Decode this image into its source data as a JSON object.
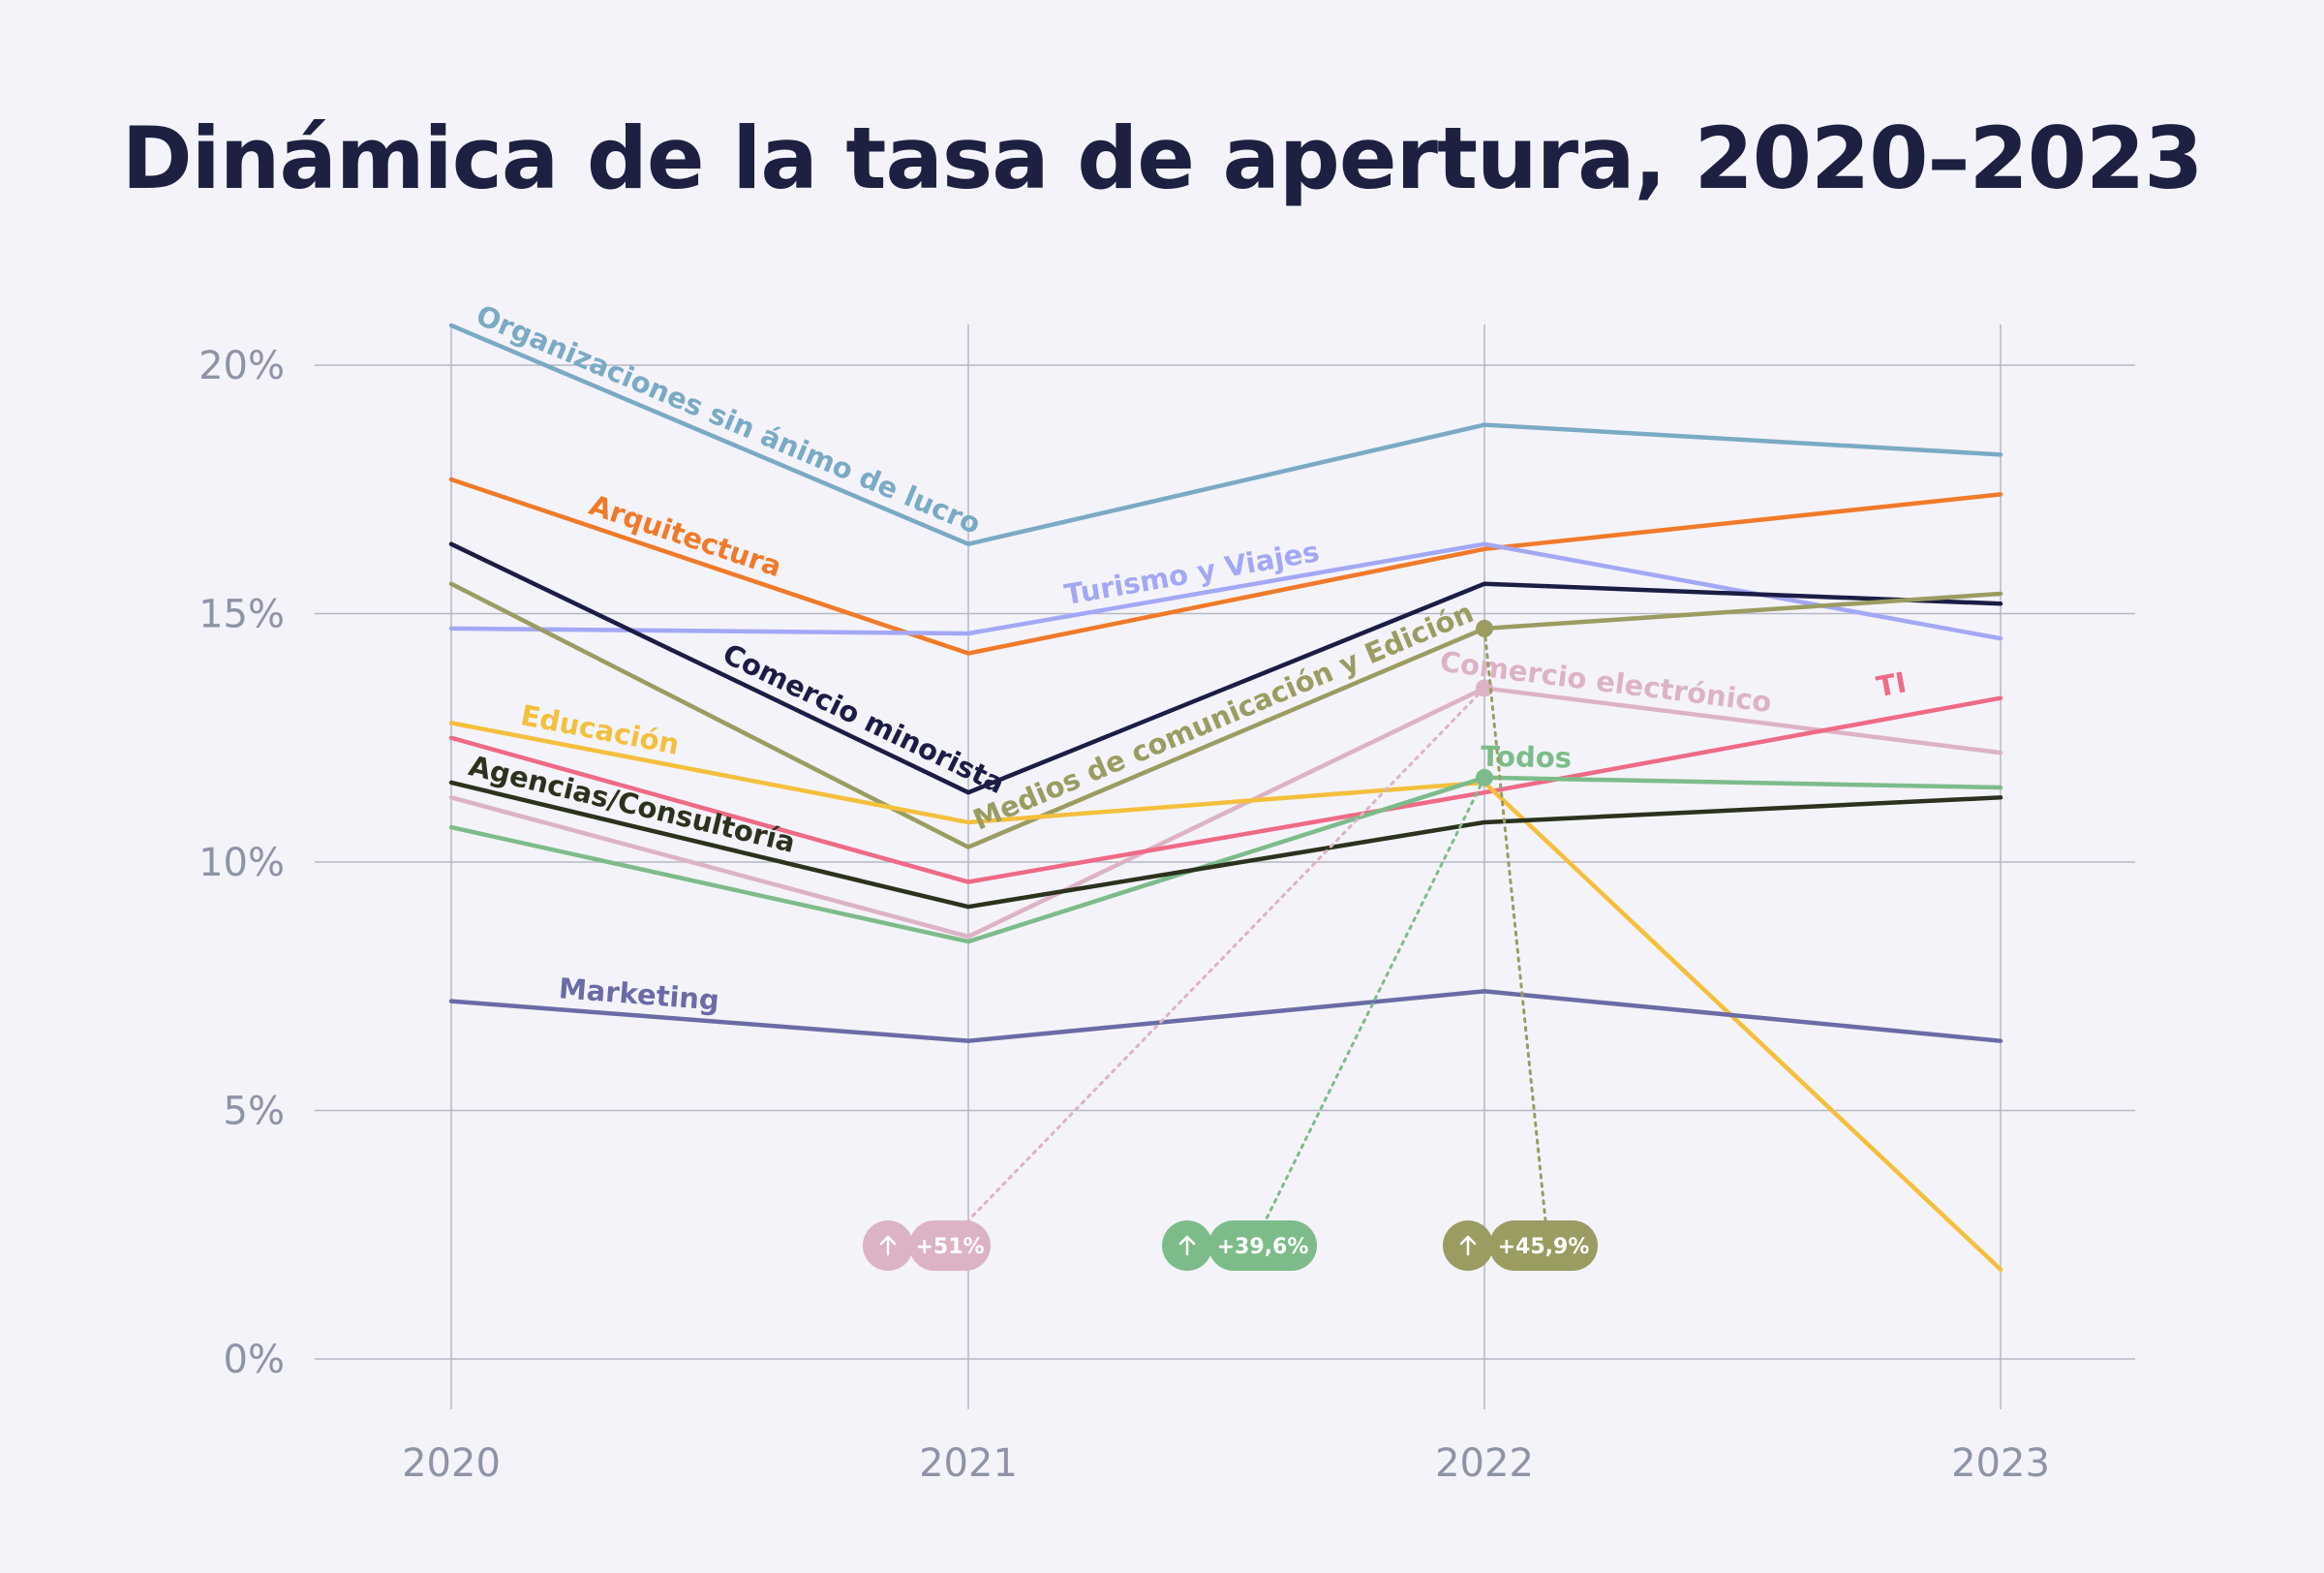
{
  "chart_data": {
    "type": "line",
    "title": "Dinámica de la tasa de apertura, 2020–2023",
    "x": [
      "2020",
      "2021",
      "2022",
      "2023"
    ],
    "y_ticks": [
      "0%",
      "5%",
      "10%",
      "15%",
      "20%"
    ],
    "ylim": [
      0,
      20
    ],
    "grid": true,
    "series": [
      {
        "name": "Organizaciones sin ánimo de lucro",
        "color": "#7aaac4",
        "values": [
          20.8,
          16.4,
          18.8,
          18.2
        ]
      },
      {
        "name": "Arquitectura",
        "color": "#f07a2a",
        "values": [
          17.7,
          14.2,
          16.3,
          17.4
        ]
      },
      {
        "name": "Turismo y Viajes",
        "color": "#a3a8f5",
        "values": [
          14.7,
          14.6,
          16.4,
          14.5
        ]
      },
      {
        "name": "Comercio minorista",
        "color": "#1c1d45",
        "values": [
          16.4,
          11.4,
          15.6,
          15.2
        ]
      },
      {
        "name": "Medios de comunicación y Edición",
        "color": "#9a9c62",
        "values": [
          15.6,
          10.3,
          14.7,
          15.4
        ]
      },
      {
        "name": "Comercio electrónico",
        "color": "#dcb3c5",
        "values": [
          11.3,
          8.5,
          13.5,
          12.2
        ]
      },
      {
        "name": "TI",
        "color": "#ee6a86",
        "values": [
          12.5,
          9.6,
          11.4,
          13.3
        ]
      },
      {
        "name": "Educación",
        "color": "#f4bf3c",
        "values": [
          12.8,
          10.8,
          11.6,
          1.8
        ]
      },
      {
        "name": "Todos",
        "color": "#7dbc8a",
        "values": [
          10.7,
          8.4,
          11.7,
          11.5
        ]
      },
      {
        "name": "Agencias/Consultoría",
        "color": "#2b321d",
        "values": [
          11.6,
          9.1,
          10.8,
          11.3
        ]
      },
      {
        "name": "Marketing",
        "color": "#6b6ba6",
        "values": [
          7.2,
          6.4,
          7.4,
          6.4
        ]
      }
    ],
    "annotations": [
      {
        "text": "+51%",
        "series": "Comercio electrónico",
        "color": "#dcb3c5"
      },
      {
        "text": "+39,6%",
        "series": "Todos",
        "color": "#7dbc8a"
      },
      {
        "text": "+45,9%",
        "series": "Medios de comunicación y Edición",
        "color": "#9a9c62"
      }
    ]
  }
}
